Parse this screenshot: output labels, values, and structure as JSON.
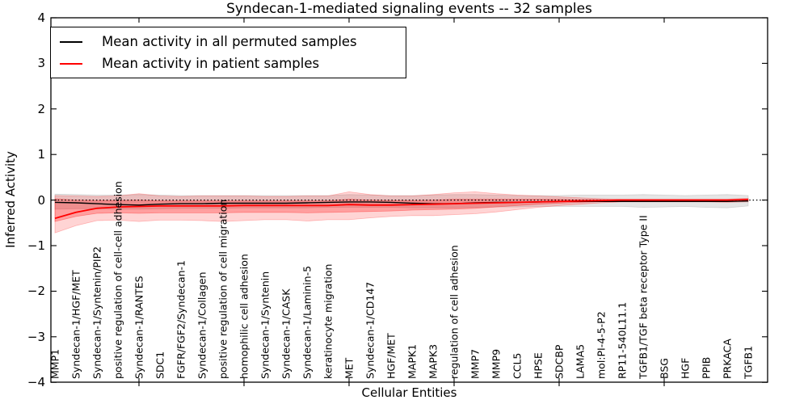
{
  "title": "Syndecan-1-mediated signaling events -- 32 samples",
  "axes": {
    "ylabel": "Inferred Activity",
    "xlabel": "Cellular Entities",
    "ylim": [
      -4,
      4
    ],
    "ytick_labels": [
      "4",
      "3",
      "2",
      "1",
      "0",
      "−1",
      "−2",
      "−3",
      "−4"
    ],
    "ytick_values": [
      4,
      3,
      2,
      1,
      0,
      -1,
      -2,
      -3,
      -4
    ],
    "xtick_values": [
      5,
      10,
      15,
      20,
      25,
      30
    ],
    "grid": false
  },
  "legend": {
    "position": "upper-left",
    "items": [
      {
        "label": "Mean activity in all permuted samples",
        "color": "#000000"
      },
      {
        "label": "Mean activity in patient samples",
        "color": "#ff0000"
      }
    ]
  },
  "colors": {
    "patient_line": "#ff0000",
    "permuted_line": "#000000",
    "patient_band": "#ff0000",
    "permuted_band": "#999999",
    "zero_line": "#000000",
    "spine": "#000000"
  },
  "chart_data": {
    "type": "line",
    "title": "Syndecan-1-mediated signaling events -- 32 samples",
    "xlabel": "Cellular Entities",
    "ylabel": "Inferred Activity",
    "ylim": [
      -4,
      4
    ],
    "legend_position": "upper left",
    "zero_reference_line": 0,
    "categories": [
      "MMP1",
      "Syndecan-1/HGF/MET",
      "Syndecan-1/Syntenin/PIP2",
      "positive regulation of cell-cell adhesion",
      "Syndecan-1/RANTES",
      "SDC1",
      "FGFR/FGF2/Syndecan-1",
      "Syndecan-1/Collagen",
      "positive regulation of cell migration",
      "homophilic cell adhesion",
      "Syndecan-1/Syntenin",
      "Syndecan-1/CASK",
      "Syndecan-1/Laminin-5",
      "keratinocyte migration",
      "MET",
      "Syndecan-1/CD147",
      "HGF/MET",
      "MAPK1",
      "MAPK3",
      "regulation of cell adhesion",
      "MMP7",
      "MMP9",
      "CCL5",
      "HPSE",
      "SDCBP",
      "LAMA5",
      "mol:PI-4-5-P2",
      "RP11-540L11.1",
      "TGFB1/TGF beta receptor Type II",
      "BSG",
      "HGF",
      "PPIB",
      "PRKACA",
      "TGFB1"
    ],
    "series": [
      {
        "name": "Mean activity in all permuted samples",
        "color": "#000000",
        "values": [
          -0.05,
          -0.06,
          -0.08,
          -0.1,
          -0.11,
          -0.09,
          -0.08,
          -0.08,
          -0.07,
          -0.07,
          -0.07,
          -0.07,
          -0.06,
          -0.05,
          -0.04,
          -0.04,
          -0.05,
          -0.07,
          -0.08,
          -0.08,
          -0.06,
          -0.05,
          -0.05,
          -0.04,
          -0.03,
          -0.03,
          -0.03,
          -0.03,
          -0.03,
          -0.03,
          -0.03,
          -0.03,
          -0.03,
          -0.02
        ]
      },
      {
        "name": "Mean activity in patient samples",
        "color": "#ff0000",
        "values": [
          -0.4,
          -0.27,
          -0.18,
          -0.15,
          -0.14,
          -0.13,
          -0.13,
          -0.13,
          -0.13,
          -0.12,
          -0.12,
          -0.12,
          -0.12,
          -0.12,
          -0.1,
          -0.11,
          -0.11,
          -0.1,
          -0.09,
          -0.08,
          -0.07,
          -0.06,
          -0.05,
          -0.04,
          -0.03,
          -0.02,
          -0.01,
          0.0,
          0.0,
          0.0,
          0.0,
          0.0,
          0.0,
          0.01
        ]
      }
    ],
    "bands": [
      {
        "name": "permuted-samples-range",
        "color": "#999999",
        "opacity": 0.25,
        "upper": [
          0.13,
          0.12,
          0.11,
          0.11,
          0.12,
          0.11,
          0.1,
          0.1,
          0.1,
          0.1,
          0.1,
          0.1,
          0.1,
          0.1,
          0.12,
          0.11,
          0.1,
          0.1,
          0.11,
          0.12,
          0.12,
          0.11,
          0.1,
          0.1,
          0.1,
          0.11,
          0.11,
          0.11,
          0.12,
          0.11,
          0.1,
          0.11,
          0.12,
          0.1
        ],
        "lower": [
          -0.2,
          -0.19,
          -0.19,
          -0.2,
          -0.2,
          -0.19,
          -0.18,
          -0.18,
          -0.18,
          -0.17,
          -0.17,
          -0.17,
          -0.17,
          -0.16,
          -0.16,
          -0.16,
          -0.16,
          -0.17,
          -0.17,
          -0.17,
          -0.16,
          -0.15,
          -0.15,
          -0.14,
          -0.14,
          -0.14,
          -0.14,
          -0.14,
          -0.16,
          -0.15,
          -0.14,
          -0.16,
          -0.17,
          -0.13
        ]
      },
      {
        "name": "patient-samples-range-outer",
        "color": "#ff0000",
        "opacity": 0.17,
        "upper": [
          0.1,
          0.09,
          0.08,
          0.09,
          0.14,
          0.09,
          0.08,
          0.09,
          0.09,
          0.09,
          0.08,
          0.08,
          0.09,
          0.09,
          0.18,
          0.12,
          0.09,
          0.09,
          0.12,
          0.16,
          0.18,
          0.14,
          0.11,
          0.09,
          0.07,
          0.05,
          0.03,
          0.02,
          0.02,
          0.02,
          0.02,
          0.02,
          0.02,
          0.04
        ],
        "lower": [
          -0.72,
          -0.56,
          -0.45,
          -0.44,
          -0.47,
          -0.44,
          -0.44,
          -0.45,
          -0.47,
          -0.45,
          -0.43,
          -0.43,
          -0.46,
          -0.43,
          -0.43,
          -0.39,
          -0.36,
          -0.34,
          -0.34,
          -0.32,
          -0.3,
          -0.26,
          -0.21,
          -0.16,
          -0.12,
          -0.09,
          -0.06,
          -0.04,
          -0.04,
          -0.04,
          -0.04,
          -0.04,
          -0.05,
          -0.04
        ]
      },
      {
        "name": "patient-samples-range-inner",
        "color": "#ff0000",
        "opacity": 0.25,
        "upper": [
          0.03,
          0.0,
          -0.01,
          -0.01,
          0.0,
          -0.02,
          -0.02,
          -0.02,
          -0.02,
          -0.02,
          -0.02,
          -0.02,
          -0.02,
          -0.02,
          0.02,
          0.0,
          -0.01,
          -0.01,
          0.0,
          0.02,
          0.02,
          0.02,
          0.02,
          0.02,
          0.02,
          0.01,
          0.01,
          0.01,
          0.01,
          0.01,
          0.01,
          0.01,
          0.01,
          0.02
        ],
        "lower": [
          -0.47,
          -0.36,
          -0.29,
          -0.28,
          -0.29,
          -0.28,
          -0.28,
          -0.28,
          -0.28,
          -0.27,
          -0.27,
          -0.27,
          -0.28,
          -0.27,
          -0.26,
          -0.25,
          -0.24,
          -0.22,
          -0.21,
          -0.2,
          -0.18,
          -0.15,
          -0.12,
          -0.09,
          -0.07,
          -0.05,
          -0.03,
          -0.02,
          -0.02,
          -0.02,
          -0.02,
          -0.02,
          -0.03,
          -0.02
        ]
      }
    ]
  }
}
